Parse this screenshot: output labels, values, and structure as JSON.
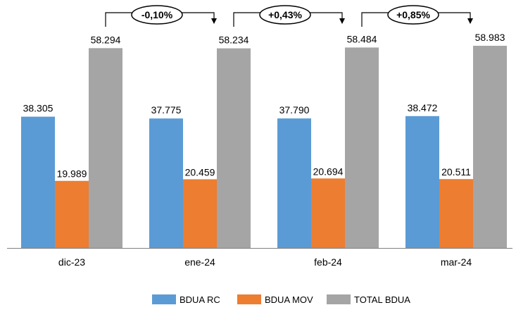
{
  "chart_data": {
    "type": "bar",
    "categories": [
      "dic-23",
      "ene-24",
      "feb-24",
      "mar-24"
    ],
    "series": [
      {
        "name": "BDUA RC",
        "values": [
          38305,
          37775,
          37790,
          38472
        ],
        "labels": [
          "38.305",
          "37.775",
          "37.790",
          "38.472"
        ],
        "color": "#5b9bd5"
      },
      {
        "name": "BDUA MOV",
        "values": [
          19989,
          20459,
          20694,
          20511
        ],
        "labels": [
          "19.989",
          "20.459",
          "20.694",
          "20.511"
        ],
        "color": "#ed7d31"
      },
      {
        "name": "TOTAL BDUA",
        "values": [
          58294,
          58234,
          58484,
          58983
        ],
        "labels": [
          "58.294",
          "58.234",
          "58.484",
          "58.983"
        ],
        "color": "#a5a5a5"
      }
    ],
    "annotations": [
      {
        "from": "dic-23",
        "to": "ene-24",
        "text": "-0,10%"
      },
      {
        "from": "ene-24",
        "to": "feb-24",
        "text": "+0,43%"
      },
      {
        "from": "feb-24",
        "to": "mar-24",
        "text": "+0,85%"
      }
    ],
    "ylim": [
      0,
      58983
    ],
    "grid": false,
    "legend": "bottom-center"
  }
}
